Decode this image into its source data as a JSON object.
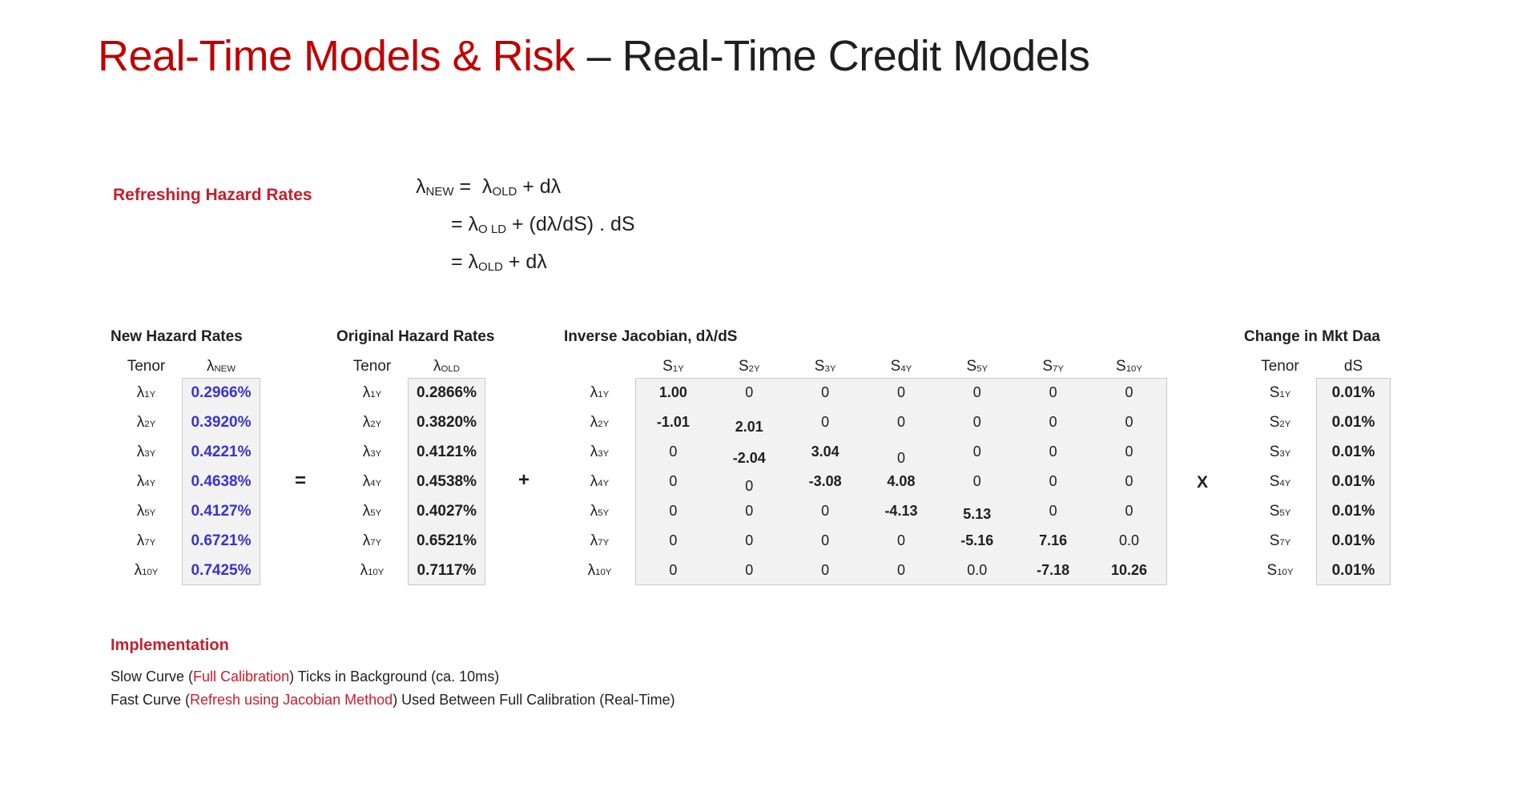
{
  "slide": {
    "title": {
      "red_part": "Real-Time Models & Risk",
      "dark_part": "– Real-Time Credit Models"
    }
  },
  "formula": {
    "label": "Refreshing Hazard Rates",
    "lines": [
      "λ_{NEW} =  λ_{OLD} + dλ",
      "= λ_{O LD} + (dλ/dS) . dS",
      "= λ_{OLD} + dλ"
    ]
  },
  "operators": {
    "equals": "=",
    "plus": "+",
    "multiply": "X"
  },
  "tables": {
    "new_hazard": {
      "title": "New Hazard Rates",
      "col1": "Tenor",
      "col2": "λ_{NEW}",
      "rows": [
        {
          "tenor": "λ_{1Y}",
          "value": "0.2966%"
        },
        {
          "tenor": "λ_{2Y}",
          "value": "0.3920%"
        },
        {
          "tenor": "λ_{3Y}",
          "value": "0.4221%"
        },
        {
          "tenor": "λ_{4Y}",
          "value": "0.4638%"
        },
        {
          "tenor": "λ_{5Y}",
          "value": "0.4127%"
        },
        {
          "tenor": "λ_{7Y}",
          "value": "0.6721%"
        },
        {
          "tenor": "λ_{10Y}",
          "value": "0.7425%"
        }
      ]
    },
    "original_hazard": {
      "title": "Original Hazard Rates",
      "col1": "Tenor",
      "col2": "λ_{OLD}",
      "rows": [
        {
          "tenor": "λ_{1Y}",
          "value": "0.2866%"
        },
        {
          "tenor": "λ_{2Y}",
          "value": "0.3820%"
        },
        {
          "tenor": "λ_{3Y}",
          "value": "0.4121%"
        },
        {
          "tenor": "λ_{4Y}",
          "value": "0.4538%"
        },
        {
          "tenor": "λ_{5Y}",
          "value": "0.4027%"
        },
        {
          "tenor": "λ_{7Y}",
          "value": "0.6521%"
        },
        {
          "tenor": "λ_{10Y}",
          "value": "0.7117%"
        }
      ]
    },
    "jacobian": {
      "title": "Inverse Jacobian, dλ/dS",
      "columns": [
        "S_{1Y}",
        "S_{2Y}",
        "S_{3Y}",
        "S_{4Y}",
        "S_{5Y}",
        "S_{7Y}",
        "S_{10Y}"
      ],
      "rows": [
        {
          "tenor": "λ_{1Y}",
          "values": [
            "1.00",
            "0",
            "0",
            "0",
            "0",
            "0",
            "0"
          ]
        },
        {
          "tenor": "λ_{2Y}",
          "values": [
            "-1.01",
            "2.01",
            "0",
            "0",
            "0",
            "0",
            "0"
          ]
        },
        {
          "tenor": "λ_{3Y}",
          "values": [
            "0",
            "-2.04",
            "3.04",
            "0",
            "0",
            "0",
            "0"
          ]
        },
        {
          "tenor": "λ_{4Y}",
          "values": [
            "0",
            "0",
            "-3.08",
            "4.08",
            "0",
            "0",
            "0"
          ]
        },
        {
          "tenor": "λ_{5Y}",
          "values": [
            "0",
            "0",
            "0",
            "-4.13",
            "5.13",
            "0",
            "0"
          ]
        },
        {
          "tenor": "λ_{7Y}",
          "values": [
            "0",
            "0",
            "0",
            "0",
            "-5.16",
            "7.16",
            "0.0"
          ]
        },
        {
          "tenor": "λ_{10Y}",
          "values": [
            "0",
            "0",
            "0",
            "0",
            "0.0",
            "-7.18",
            "10.26"
          ]
        }
      ]
    },
    "mkt_change": {
      "title": "Change in Mkt Daa",
      "col1": "Tenor",
      "col2": "dS",
      "rows": [
        {
          "tenor": "S_{1Y}",
          "value": "0.01%"
        },
        {
          "tenor": "S_{2Y}",
          "value": "0.01%"
        },
        {
          "tenor": "S_{3Y}",
          "value": "0.01%"
        },
        {
          "tenor": "S_{4Y}",
          "value": "0.01%"
        },
        {
          "tenor": "S_{5Y}",
          "value": "0.01%"
        },
        {
          "tenor": "S_{7Y}",
          "value": "0.01%"
        },
        {
          "tenor": "S_{10Y}",
          "value": "0.01%"
        }
      ]
    }
  },
  "implementation": {
    "title": "Implementation",
    "lines": [
      {
        "segments": [
          {
            "text": "Slow Curve ("
          },
          {
            "text": "Full Calibration",
            "red": true
          },
          {
            "text": ") Ticks in Background (ca. 10ms)"
          }
        ]
      },
      {
        "segments": [
          {
            "text": "Fast Curve ("
          },
          {
            "text": "Refresh using Jacobian Method",
            "red": true
          },
          {
            "text": ") Used Between Full Calibration (Real-Time)"
          }
        ]
      }
    ]
  },
  "colors": {
    "title_red": "#C00000",
    "accent_red": "#C81E2D",
    "value_blue": "#3733D5",
    "box_bg": "#F2F2F2",
    "box_border": "#C9C9C9",
    "ink": "#1F1F1F"
  }
}
